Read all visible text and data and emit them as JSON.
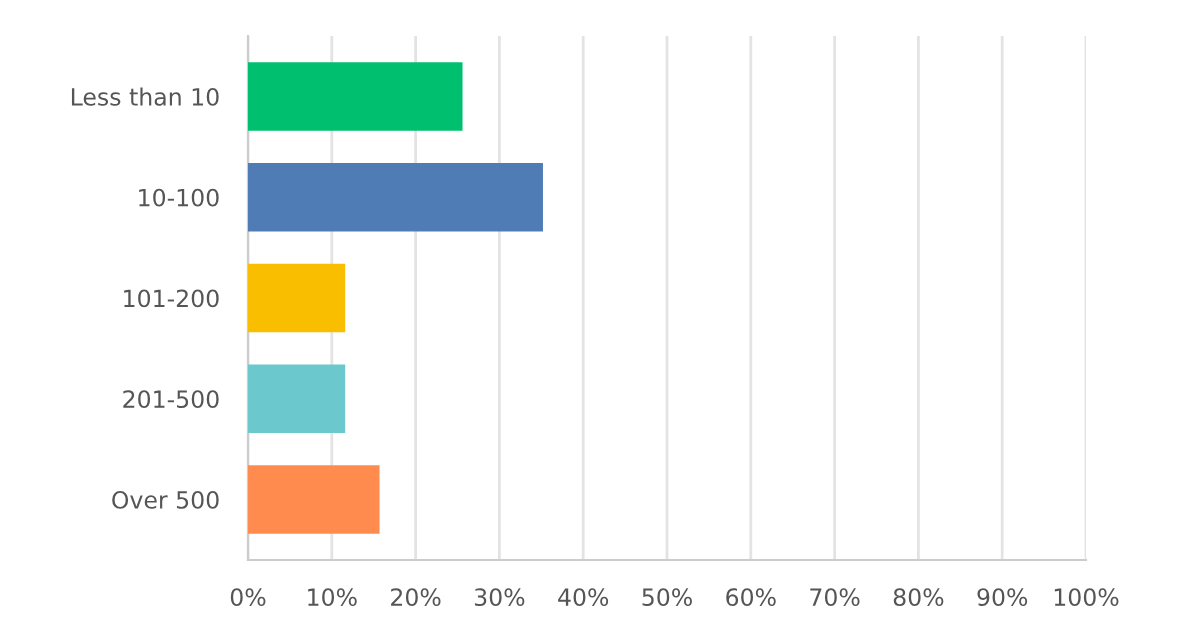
{
  "chart_data": {
    "type": "bar",
    "orientation": "horizontal",
    "categories": [
      "Less than 10",
      "10-100",
      "101-200",
      "201-500",
      "Over 500"
    ],
    "values": [
      25.6,
      35.2,
      11.6,
      11.6,
      15.7
    ],
    "colors": [
      "#00bf6f",
      "#507cb6",
      "#f9be00",
      "#6bc8cd",
      "#ff8b4f"
    ],
    "xlim": [
      0,
      100
    ],
    "xticks": [
      {
        "value": 0,
        "label": "0%"
      },
      {
        "value": 10,
        "label": "10%"
      },
      {
        "value": 20,
        "label": "20%"
      },
      {
        "value": 30,
        "label": "30%"
      },
      {
        "value": 40,
        "label": "40%"
      },
      {
        "value": 50,
        "label": "50%"
      },
      {
        "value": 60,
        "label": "60%"
      },
      {
        "value": 70,
        "label": "70%"
      },
      {
        "value": 80,
        "label": "80%"
      },
      {
        "value": 90,
        "label": "90%"
      },
      {
        "value": 100,
        "label": "100%"
      }
    ],
    "grid": "x",
    "legend": false
  }
}
